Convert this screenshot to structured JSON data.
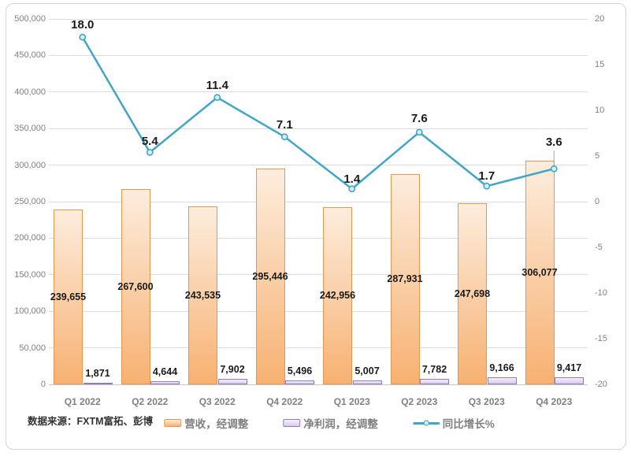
{
  "source_note": "数据来源：FXTM富拓、彭博",
  "colors": {
    "revenue_border": "#E8954E",
    "revenue_fill_top": "#FDEDDD",
    "revenue_fill_bottom": "#F7B172",
    "profit_border": "#8F7BB8",
    "profit_fill_top": "#F4F0FA",
    "profit_fill_bottom": "#D9C9EC",
    "growth_line": "#41A6C6",
    "growth_marker_fill": "#D8EDF6",
    "grid": "#DCDCDC",
    "axis_line": "#C6C6C6",
    "axis_text": "#808080",
    "data_label_text": "#1A1A1A",
    "legend_text": "#7F7F7F",
    "source_text": "#333333",
    "frame_border": "#D5D5D5",
    "leader_line": "#A6A6A6"
  },
  "chart_data": {
    "type": "combo",
    "title": "",
    "categories": [
      "Q1 2022",
      "Q2 2022",
      "Q3 2022",
      "Q4 2022",
      "Q1 2023",
      "Q2 2023",
      "Q3 2023",
      "Q4 2023"
    ],
    "series": [
      {
        "name": "营收，经调整",
        "type": "bar",
        "axis": "left",
        "values": [
          239655,
          267600,
          243535,
          295446,
          242956,
          287931,
          247698,
          306077
        ],
        "labels": [
          "239,655",
          "267,600",
          "243,535",
          "295,446",
          "242,956",
          "287,931",
          "247,698",
          "306,077"
        ]
      },
      {
        "name": "净利润，经调整",
        "type": "bar",
        "axis": "left",
        "values": [
          1871,
          4644,
          7902,
          5496,
          5007,
          7782,
          9166,
          9417
        ],
        "labels": [
          "1,871",
          "4,644",
          "7,902",
          "5,496",
          "5,007",
          "7,782",
          "9,166",
          "9,417"
        ]
      },
      {
        "name": "同比增长%",
        "type": "line",
        "axis": "right",
        "values": [
          18.0,
          5.4,
          11.4,
          7.1,
          1.4,
          7.6,
          1.7,
          3.6
        ],
        "labels": [
          "18.0",
          "5.4",
          "11.4",
          "7.1",
          "1.4",
          "7.6",
          "1.7",
          "3.6"
        ],
        "label_dy": [
          15,
          13,
          15,
          15,
          12,
          17,
          12,
          33
        ],
        "leader_points": [
          7
        ]
      }
    ],
    "left_axis": {
      "min": 0,
      "max": 500000,
      "ticks": [
        "500,000",
        "450,000",
        "400,000",
        "350,000",
        "300,000",
        "250,000",
        "200,000",
        "150,000",
        "100,000",
        "50,000",
        "0"
      ]
    },
    "right_axis": {
      "min": -20,
      "max": 20,
      "ticks": [
        "20",
        "15",
        "10",
        "5",
        "0",
        "-5",
        "-10",
        "-15",
        "-20"
      ]
    },
    "legend": [
      {
        "label": "营收，经调整",
        "swatch": "bar",
        "color_key": "revenue"
      },
      {
        "label": "净利润，经调整",
        "swatch": "bar",
        "color_key": "profit"
      },
      {
        "label": "同比增长%",
        "swatch": "line",
        "color_key": "growth"
      }
    ],
    "grid": true,
    "legend_position": "bottom"
  }
}
